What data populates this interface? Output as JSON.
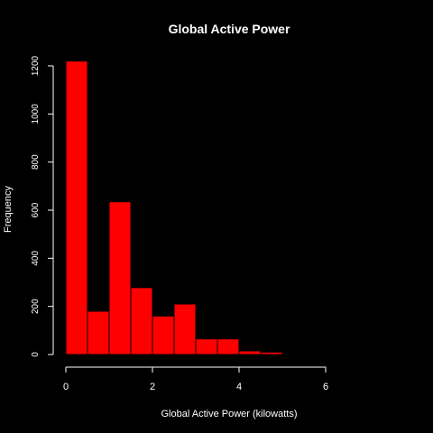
{
  "chart_data": {
    "type": "bar",
    "title": "Global Active Power",
    "xlabel": "Global Active Power (kilowatts)",
    "ylabel": "Frequency",
    "bins": [
      {
        "start": 0.0,
        "end": 0.5,
        "count": 1220
      },
      {
        "start": 0.5,
        "end": 1.0,
        "count": 180
      },
      {
        "start": 1.0,
        "end": 1.5,
        "count": 635
      },
      {
        "start": 1.5,
        "end": 2.0,
        "count": 278
      },
      {
        "start": 2.0,
        "end": 2.5,
        "count": 160
      },
      {
        "start": 2.5,
        "end": 3.0,
        "count": 210
      },
      {
        "start": 3.0,
        "end": 3.5,
        "count": 65
      },
      {
        "start": 3.5,
        "end": 4.0,
        "count": 65
      },
      {
        "start": 4.0,
        "end": 4.5,
        "count": 15
      },
      {
        "start": 4.5,
        "end": 5.0,
        "count": 10
      }
    ],
    "xticks": [
      {
        "value": 0,
        "label": "0"
      },
      {
        "value": 2,
        "label": "2"
      },
      {
        "value": 4,
        "label": "4"
      },
      {
        "value": 6,
        "label": "6"
      }
    ],
    "yticks": [
      {
        "value": 0,
        "label": "0"
      },
      {
        "value": 200,
        "label": "200"
      },
      {
        "value": 400,
        "label": "400"
      },
      {
        "value": 600,
        "label": "600"
      },
      {
        "value": 800,
        "label": "800"
      },
      {
        "value": 1000,
        "label": "1000"
      },
      {
        "value": 1200,
        "label": "1200"
      }
    ],
    "xlim": [
      0,
      6
    ],
    "ylim": [
      0,
      1200
    ],
    "grid": false,
    "colors": {
      "bar": "#ff0000",
      "bar_border": "#000000",
      "axis": "#ffffff",
      "background": "#000000"
    }
  }
}
